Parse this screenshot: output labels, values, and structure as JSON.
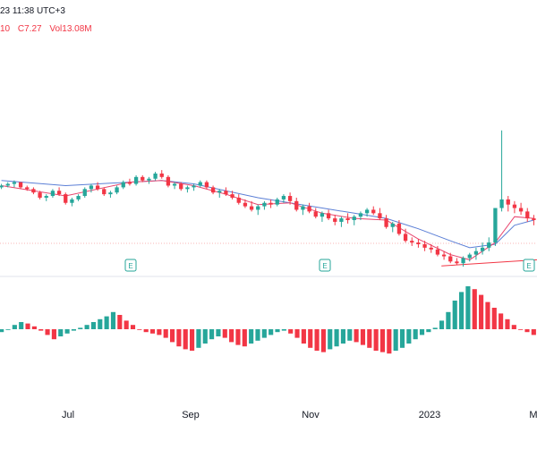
{
  "header": {
    "line1": "23 11:38 UTC+3",
    "ohlc": [
      {
        "label": "10",
        "color": "#f23645"
      },
      {
        "label": "C7.27",
        "color": "#f23645"
      },
      {
        "label": "Vol13.08M",
        "color": "#f23645"
      }
    ]
  },
  "colors": {
    "up": "#26a69a",
    "down": "#f23645",
    "ma_blue": "#5b7fd6",
    "ma_pink": "#e8466f",
    "price_line": "#f23645",
    "axis_text": "#131722",
    "event": "#26a69a"
  },
  "time_axis": {
    "labels": [
      "Jul",
      "Sep",
      "Nov",
      "2023",
      "M"
    ]
  },
  "events": [
    {
      "name": "earnings-marker-1",
      "icon": "E"
    },
    {
      "name": "earnings-marker-2",
      "icon": "E"
    },
    {
      "name": "earnings-marker-3",
      "icon": "E"
    }
  ],
  "chart_data": {
    "type": "candlestick-with-histogram",
    "price_series": [
      [
        0,
        2,
        4,
        1,
        3
      ],
      [
        1,
        3,
        5,
        2,
        4
      ],
      [
        2,
        4,
        6,
        2,
        5
      ],
      [
        3,
        5,
        5,
        1,
        2
      ],
      [
        4,
        2,
        3,
        0,
        1
      ],
      [
        5,
        1,
        2,
        -2,
        -1
      ],
      [
        6,
        -1,
        0,
        -5,
        -4
      ],
      [
        7,
        -4,
        -2,
        -6,
        -3
      ],
      [
        8,
        -3,
        1,
        -4,
        0
      ],
      [
        9,
        0,
        2,
        -3,
        -2
      ],
      [
        10,
        -2,
        -1,
        -8,
        -7
      ],
      [
        11,
        -7,
        -4,
        -9,
        -5
      ],
      [
        12,
        -5,
        -2,
        -6,
        -3
      ],
      [
        13,
        -3,
        2,
        -4,
        1
      ],
      [
        14,
        1,
        4,
        -1,
        3
      ],
      [
        15,
        3,
        5,
        0,
        1
      ],
      [
        16,
        1,
        2,
        -3,
        -2
      ],
      [
        17,
        -2,
        0,
        -4,
        -1
      ],
      [
        18,
        -1,
        3,
        -2,
        2
      ],
      [
        19,
        2,
        6,
        1,
        5
      ],
      [
        20,
        5,
        7,
        3,
        4
      ],
      [
        21,
        4,
        9,
        3,
        8
      ],
      [
        22,
        8,
        9,
        5,
        6
      ],
      [
        23,
        6,
        8,
        4,
        7
      ],
      [
        24,
        7,
        11,
        6,
        10
      ],
      [
        25,
        10,
        12,
        7,
        8
      ],
      [
        26,
        8,
        9,
        2,
        3
      ],
      [
        27,
        3,
        5,
        1,
        4
      ],
      [
        28,
        4,
        5,
        0,
        1
      ],
      [
        29,
        1,
        3,
        -1,
        2
      ],
      [
        30,
        2,
        4,
        0,
        3
      ],
      [
        31,
        3,
        6,
        2,
        5
      ],
      [
        32,
        5,
        6,
        1,
        2
      ],
      [
        33,
        2,
        3,
        -2,
        -1
      ],
      [
        34,
        -1,
        1,
        -4,
        0
      ],
      [
        35,
        0,
        2,
        -3,
        -2
      ],
      [
        36,
        -2,
        0,
        -5,
        -4
      ],
      [
        37,
        -4,
        -2,
        -8,
        -7
      ],
      [
        38,
        -7,
        -5,
        -10,
        -9
      ],
      [
        39,
        -9,
        -6,
        -12,
        -11
      ],
      [
        40,
        -11,
        -8,
        -14,
        -9
      ],
      [
        41,
        -9,
        -6,
        -11,
        -7
      ],
      [
        42,
        -7,
        -5,
        -10,
        -8
      ],
      [
        43,
        -8,
        -4,
        -9,
        -5
      ],
      [
        44,
        -5,
        -2,
        -7,
        -3
      ],
      [
        45,
        -3,
        -1,
        -8,
        -6
      ],
      [
        46,
        -6,
        -4,
        -12,
        -11
      ],
      [
        47,
        -11,
        -8,
        -14,
        -9
      ],
      [
        48,
        -9,
        -7,
        -13,
        -12
      ],
      [
        49,
        -12,
        -10,
        -16,
        -15
      ],
      [
        50,
        -15,
        -12,
        -18,
        -13
      ],
      [
        51,
        -13,
        -11,
        -17,
        -16
      ],
      [
        52,
        -16,
        -14,
        -20,
        -18
      ],
      [
        53,
        -18,
        -15,
        -21,
        -16
      ],
      [
        54,
        -16,
        -13,
        -19,
        -17
      ],
      [
        55,
        -17,
        -14,
        -20,
        -15
      ],
      [
        56,
        -15,
        -12,
        -17,
        -13
      ],
      [
        57,
        -13,
        -10,
        -15,
        -11
      ],
      [
        58,
        -11,
        -9,
        -14,
        -13
      ],
      [
        59,
        -13,
        -10,
        -17,
        -16
      ],
      [
        60,
        -16,
        -14,
        -22,
        -21
      ],
      [
        61,
        -21,
        -18,
        -24,
        -19
      ],
      [
        62,
        -19,
        -17,
        -26,
        -25
      ],
      [
        63,
        -25,
        -22,
        -30,
        -29
      ],
      [
        64,
        -29,
        -27,
        -32,
        -30
      ],
      [
        65,
        -30,
        -28,
        -33,
        -31
      ],
      [
        66,
        -31,
        -29,
        -35,
        -33
      ],
      [
        67,
        -33,
        -31,
        -36,
        -34
      ],
      [
        68,
        -34,
        -32,
        -38,
        -37
      ],
      [
        69,
        -37,
        -35,
        -40,
        -38
      ],
      [
        70,
        -38,
        -36,
        -42,
        -41
      ],
      [
        71,
        -41,
        -39,
        -43,
        -42
      ],
      [
        72,
        -42,
        -38,
        -44,
        -39
      ],
      [
        73,
        -39,
        -36,
        -41,
        -37
      ],
      [
        74,
        -37,
        -33,
        -40,
        -35
      ],
      [
        75,
        -35,
        -30,
        -37,
        -33
      ],
      [
        76,
        -33,
        -27,
        -35,
        -30
      ],
      [
        77,
        -30,
        -24,
        -32,
        -10
      ],
      [
        78,
        -10,
        35,
        -12,
        -5
      ],
      [
        79,
        -5,
        -3,
        -12,
        -8
      ],
      [
        80,
        -8,
        -6,
        -13,
        -10
      ],
      [
        81,
        -10,
        -7,
        -14,
        -12
      ],
      [
        82,
        -12,
        -10,
        -18,
        -16
      ],
      [
        83,
        -16,
        -14,
        -20,
        -17
      ]
    ],
    "ma_fast": [
      [
        0,
        3
      ],
      [
        10,
        -3
      ],
      [
        20,
        5
      ],
      [
        25,
        6
      ],
      [
        30,
        3
      ],
      [
        35,
        -2
      ],
      [
        40,
        -8
      ],
      [
        45,
        -7
      ],
      [
        50,
        -13
      ],
      [
        55,
        -16
      ],
      [
        60,
        -17
      ],
      [
        65,
        -28
      ],
      [
        70,
        -37
      ],
      [
        73,
        -40
      ],
      [
        77,
        -30
      ],
      [
        80,
        -15
      ],
      [
        83,
        -16
      ]
    ],
    "ma_slow": [
      [
        0,
        6
      ],
      [
        10,
        3
      ],
      [
        20,
        5
      ],
      [
        25,
        6
      ],
      [
        30,
        4
      ],
      [
        35,
        0
      ],
      [
        40,
        -4
      ],
      [
        45,
        -7
      ],
      [
        50,
        -10
      ],
      [
        55,
        -13
      ],
      [
        60,
        -16
      ],
      [
        65,
        -22
      ],
      [
        70,
        -29
      ],
      [
        73,
        -33
      ],
      [
        77,
        -31
      ],
      [
        80,
        -20
      ],
      [
        83,
        -17
      ]
    ],
    "histogram": [
      -2,
      0,
      3,
      5,
      4,
      2,
      -1,
      -4,
      -7,
      -5,
      -3,
      -1,
      1,
      3,
      5,
      7,
      9,
      12,
      10,
      6,
      3,
      0,
      -2,
      -3,
      -4,
      -6,
      -9,
      -12,
      -14,
      -15,
      -13,
      -10,
      -7,
      -5,
      -6,
      -9,
      -11,
      -12,
      -10,
      -8,
      -6,
      -4,
      -2,
      -1,
      -3,
      -6,
      -10,
      -13,
      -15,
      -16,
      -14,
      -12,
      -10,
      -8,
      -9,
      -11,
      -13,
      -15,
      -16,
      -17,
      -15,
      -13,
      -10,
      -7,
      -4,
      -2,
      1,
      6,
      12,
      20,
      26,
      30,
      28,
      24,
      19,
      15,
      11,
      7,
      3,
      0,
      -2,
      -4
    ],
    "support_line": {
      "x0": 70,
      "y0": -42,
      "x1": 83,
      "y1": -39
    },
    "xlabel": "",
    "ylabel": ""
  }
}
